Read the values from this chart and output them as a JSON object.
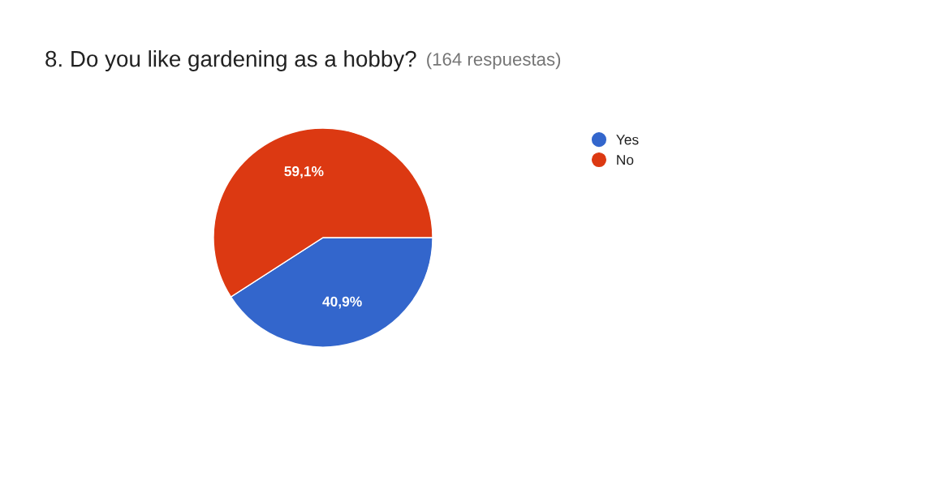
{
  "chart_data": {
    "type": "pie",
    "title": "8. Do you like gardening as a hobby?",
    "subtitle": "(164 respuestas)",
    "categories": [
      "Yes",
      "No"
    ],
    "values": [
      40.9,
      59.1
    ],
    "colors": [
      "#3366cc",
      "#dc3912"
    ],
    "value_labels": [
      "40,9%",
      "59,1%"
    ],
    "legend": "right"
  }
}
